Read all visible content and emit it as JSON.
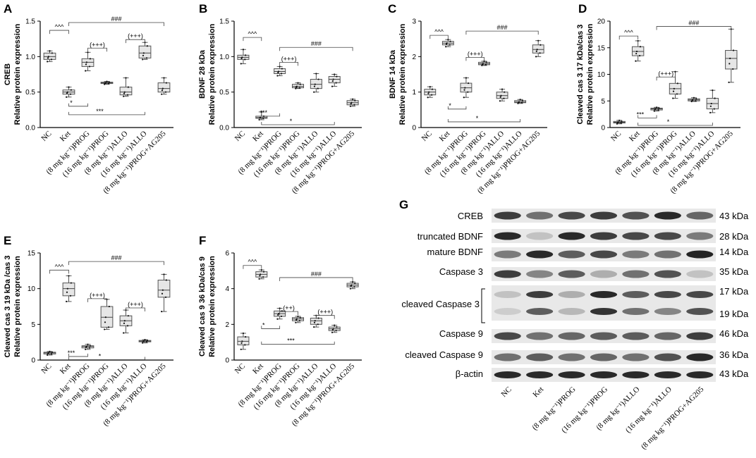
{
  "chart_data": [
    {
      "type": "box",
      "panel": "A",
      "ylabel_lines": [
        "CREB",
        "Relative protein expression"
      ],
      "ylim": [
        0,
        1.5
      ],
      "yticks": [
        "0.0",
        "0.5",
        "1.0",
        "1.5"
      ],
      "categories": [
        "NC",
        "Ket",
        "(8 mg kg⁻¹)PROG",
        "(16 mg kg⁻¹)PROG",
        "(8 mg kg⁻¹)ALLO",
        "(16 mg kg⁻¹)ALLO",
        "(8 mg kg⁻¹)PROG+AG205"
      ],
      "boxes": [
        {
          "min": 0.93,
          "q1": 0.96,
          "median": 1.0,
          "q3": 1.05,
          "max": 1.08
        },
        {
          "min": 0.43,
          "q1": 0.47,
          "median": 0.5,
          "q3": 0.53,
          "max": 0.57
        },
        {
          "min": 0.8,
          "q1": 0.86,
          "median": 0.92,
          "q3": 0.97,
          "max": 1.06
        },
        {
          "min": 0.61,
          "q1": 0.62,
          "median": 0.63,
          "q3": 0.64,
          "max": 0.65
        },
        {
          "min": 0.44,
          "q1": 0.46,
          "median": 0.5,
          "q3": 0.57,
          "max": 0.7
        },
        {
          "min": 0.96,
          "q1": 0.98,
          "median": 1.05,
          "q3": 1.15,
          "max": 1.2
        },
        {
          "min": 0.47,
          "q1": 0.5,
          "median": 0.55,
          "q3": 0.63,
          "max": 0.7
        }
      ],
      "annotations": [
        "^^^",
        "(+++)",
        "(+++)",
        "###",
        "*",
        "***"
      ]
    },
    {
      "type": "box",
      "panel": "B",
      "ylabel_lines": [
        "BDNF 28 kDa",
        "Relative protein expression"
      ],
      "ylim": [
        0,
        1.5
      ],
      "yticks": [
        "0.0",
        "0.5",
        "1.0",
        "1.5"
      ],
      "categories": [
        "NC",
        "Ket",
        "(8 mg kg⁻¹)PROG",
        "(16 mg kg⁻¹)PROG",
        "(8 mg kg⁻¹)ALLO",
        "(16 mg kg⁻¹)ALLO",
        "(8 mg kg⁻¹)PROG+AG205"
      ],
      "boxes": [
        {
          "min": 0.9,
          "q1": 0.96,
          "median": 0.99,
          "q3": 1.02,
          "max": 1.1
        },
        {
          "min": 0.11,
          "q1": 0.13,
          "median": 0.14,
          "q3": 0.16,
          "max": 0.22
        },
        {
          "min": 0.73,
          "q1": 0.76,
          "median": 0.79,
          "q3": 0.83,
          "max": 0.86
        },
        {
          "min": 0.55,
          "q1": 0.56,
          "median": 0.58,
          "q3": 0.61,
          "max": 0.63
        },
        {
          "min": 0.5,
          "q1": 0.55,
          "median": 0.61,
          "q3": 0.68,
          "max": 0.76
        },
        {
          "min": 0.58,
          "q1": 0.63,
          "median": 0.68,
          "q3": 0.72,
          "max": 0.75
        },
        {
          "min": 0.3,
          "q1": 0.32,
          "median": 0.35,
          "q3": 0.38,
          "max": 0.4
        }
      ],
      "annotations": [
        "^^^",
        "(+++)",
        "###",
        "***",
        "*"
      ]
    },
    {
      "type": "box",
      "panel": "C",
      "ylabel_lines": [
        "BDNF 14 kDa",
        "Relative protein expression"
      ],
      "ylim": [
        0,
        3
      ],
      "yticks": [
        "0",
        "1",
        "2",
        "3"
      ],
      "categories": [
        "NC",
        "Ket",
        "(8 mg kg⁻¹)PROG",
        "(16 mg kg⁻¹)PROG",
        "(8 mg kg⁻¹)ALLO",
        "(16 mg kg⁻¹)ALLO",
        "(8 mg kg⁻¹)PROG+AG205"
      ],
      "boxes": [
        {
          "min": 0.85,
          "q1": 0.92,
          "median": 1.0,
          "q3": 1.08,
          "max": 1.15
        },
        {
          "min": 2.28,
          "q1": 2.33,
          "median": 2.38,
          "q3": 2.43,
          "max": 2.48
        },
        {
          "min": 0.85,
          "q1": 1.0,
          "median": 1.12,
          "q3": 1.25,
          "max": 1.4
        },
        {
          "min": 1.75,
          "q1": 1.77,
          "median": 1.8,
          "q3": 1.84,
          "max": 1.87
        },
        {
          "min": 0.75,
          "q1": 0.82,
          "median": 0.9,
          "q3": 1.0,
          "max": 1.08
        },
        {
          "min": 0.68,
          "q1": 0.7,
          "median": 0.72,
          "q3": 0.76,
          "max": 0.79
        },
        {
          "min": 2.0,
          "q1": 2.1,
          "median": 2.2,
          "q3": 2.33,
          "max": 2.45
        }
      ],
      "annotations": [
        "^^^",
        "(+++)",
        "###",
        "*",
        "*"
      ]
    },
    {
      "type": "box",
      "panel": "D",
      "ylabel_lines": [
        "Cleaved cas 3 17 kDa/cas 3",
        "Relative protein expression"
      ],
      "ylim": [
        0,
        20
      ],
      "yticks": [
        "0",
        "5",
        "10",
        "15",
        "20"
      ],
      "categories": [
        "NC",
        "Ket",
        "(8 mg kg⁻¹)PROG",
        "(16 mg kg⁻¹)PROG",
        "(8 mg kg⁻¹)ALLO",
        "(16 mg kg⁻¹)ALLO",
        "(8 mg kg⁻¹)PROG+AG205"
      ],
      "boxes": [
        {
          "min": 0.7,
          "q1": 0.85,
          "median": 1.0,
          "q3": 1.15,
          "max": 1.35
        },
        {
          "min": 12.5,
          "q1": 13.5,
          "median": 14.3,
          "q3": 15.2,
          "max": 16.3
        },
        {
          "min": 3.1,
          "q1": 3.3,
          "median": 3.5,
          "q3": 3.65,
          "max": 3.8
        },
        {
          "min": 5.5,
          "q1": 6.3,
          "median": 7.3,
          "q3": 8.3,
          "max": 10.5
        },
        {
          "min": 4.9,
          "q1": 5.0,
          "median": 5.2,
          "q3": 5.4,
          "max": 5.6
        },
        {
          "min": 2.8,
          "q1": 3.5,
          "median": 4.5,
          "q3": 5.5,
          "max": 7.0
        },
        {
          "min": 8.5,
          "q1": 11.0,
          "median": 13.0,
          "q3": 14.5,
          "max": 18.5
        }
      ],
      "annotations": [
        "^^^",
        "(+++)",
        "###",
        "***",
        "*"
      ]
    },
    {
      "type": "box",
      "panel": "E",
      "ylabel_lines": [
        "Cleaved cas 3 19 kDa /cas 3",
        "Relative protein expression"
      ],
      "ylim": [
        0,
        15
      ],
      "yticks": [
        "0",
        "5",
        "10",
        "15"
      ],
      "categories": [
        "NC",
        "Ket",
        "(8 mg kg⁻¹)PROG",
        "(16 mg kg⁻¹)PROG",
        "(8 mg kg⁻¹)ALLO",
        "(16 mg kg⁻¹)ALLO",
        "(8 mg kg⁻¹)PROG+AG205"
      ],
      "boxes": [
        {
          "min": 0.7,
          "q1": 0.85,
          "median": 1.0,
          "q3": 1.1,
          "max": 1.2
        },
        {
          "min": 8.2,
          "q1": 9.0,
          "median": 10.0,
          "q3": 10.8,
          "max": 11.8
        },
        {
          "min": 1.5,
          "q1": 1.7,
          "median": 1.9,
          "q3": 2.0,
          "max": 2.2
        },
        {
          "min": 4.3,
          "q1": 4.6,
          "median": 6.0,
          "q3": 7.5,
          "max": 8.5
        },
        {
          "min": 3.8,
          "q1": 4.8,
          "median": 5.5,
          "q3": 6.2,
          "max": 7.0
        },
        {
          "min": 2.4,
          "q1": 2.55,
          "median": 2.65,
          "q3": 2.75,
          "max": 2.85
        },
        {
          "min": 6.8,
          "q1": 8.8,
          "median": 9.8,
          "q3": 11.2,
          "max": 12.0
        }
      ],
      "annotations": [
        "^^^",
        "(+++)",
        "(+++)",
        "###",
        "***",
        "*"
      ]
    },
    {
      "type": "box",
      "panel": "F",
      "ylabel_lines": [
        "Cleaved cas 9 36 kDa/cas 9",
        "Relative protein expression"
      ],
      "ylim": [
        0,
        6
      ],
      "yticks": [
        "0",
        "2",
        "4",
        "6"
      ],
      "categories": [
        "NC",
        "Ket",
        "(8 mg kg⁻¹)PROG",
        "(16 mg kg⁻¹)PROG",
        "(8 mg kg⁻¹)ALLO",
        "(16 mg kg⁻¹)ALLO",
        "(8 mg kg⁻¹)PROG+AG205"
      ],
      "boxes": [
        {
          "min": 0.6,
          "q1": 0.85,
          "median": 1.05,
          "q3": 1.3,
          "max": 1.5
        },
        {
          "min": 4.55,
          "q1": 4.65,
          "median": 4.8,
          "q3": 4.95,
          "max": 5.05
        },
        {
          "min": 2.3,
          "q1": 2.45,
          "median": 2.6,
          "q3": 2.75,
          "max": 2.9
        },
        {
          "min": 2.1,
          "q1": 2.2,
          "median": 2.3,
          "q3": 2.38,
          "max": 2.45
        },
        {
          "min": 1.85,
          "q1": 2.0,
          "median": 2.2,
          "q3": 2.35,
          "max": 2.5
        },
        {
          "min": 1.55,
          "q1": 1.65,
          "median": 1.75,
          "q3": 1.85,
          "max": 1.95
        },
        {
          "min": 4.0,
          "q1": 4.1,
          "median": 4.2,
          "q3": 4.3,
          "max": 4.38
        }
      ],
      "annotations": [
        "^^^",
        "(++)",
        "(+++)",
        "###",
        "*",
        "***"
      ]
    }
  ],
  "blot": {
    "panel": "G",
    "rows": [
      {
        "label": "CREB",
        "kda": "43 kDa"
      },
      {
        "label": "truncated BDNF",
        "kda": "28 kDa"
      },
      {
        "label": "mature BDNF",
        "kda": "14 kDa"
      },
      {
        "label": "Caspase 3",
        "kda": "35 kDa"
      },
      {
        "label": "cleaved Caspase 3",
        "kda": "17 kDa",
        "kda2": "19 kDa"
      },
      {
        "label": "Caspase 9",
        "kda": "46 kDa"
      },
      {
        "label": "cleaved Caspase 9",
        "kda": "36 kDa"
      },
      {
        "label": "β-actin",
        "kda": "43 kDa"
      }
    ],
    "lanes": [
      "NC",
      "Ket",
      "(8 mg kg⁻¹)PROG",
      "(16 mg kg⁻¹)PROG",
      "(8 mg kg⁻¹)ALLO",
      "(16 mg kg⁻¹)ALLO",
      "(8 mg kg⁻¹)PROG+AG205"
    ],
    "intensity": [
      [
        0.85,
        0.6,
        0.8,
        0.85,
        0.75,
        0.95,
        0.65
      ],
      [
        0.95,
        0.2,
        0.95,
        0.85,
        0.8,
        0.8,
        0.55
      ],
      [
        0.55,
        0.95,
        0.7,
        0.8,
        0.55,
        0.6,
        0.98
      ],
      [
        0.85,
        0.5,
        0.7,
        0.3,
        0.6,
        0.75,
        0.2
      ],
      [
        0.2,
        0.85,
        0.3,
        0.95,
        0.7,
        0.8,
        0.8
      ],
      [
        0.15,
        0.7,
        0.25,
        0.9,
        0.6,
        0.5,
        0.75
      ],
      [
        0.8,
        0.6,
        0.65,
        0.7,
        0.7,
        0.65,
        0.85
      ],
      [
        0.6,
        0.7,
        0.6,
        0.65,
        0.6,
        0.75,
        0.95
      ],
      [
        0.95,
        0.95,
        0.95,
        0.95,
        0.95,
        0.95,
        0.95
      ]
    ]
  }
}
